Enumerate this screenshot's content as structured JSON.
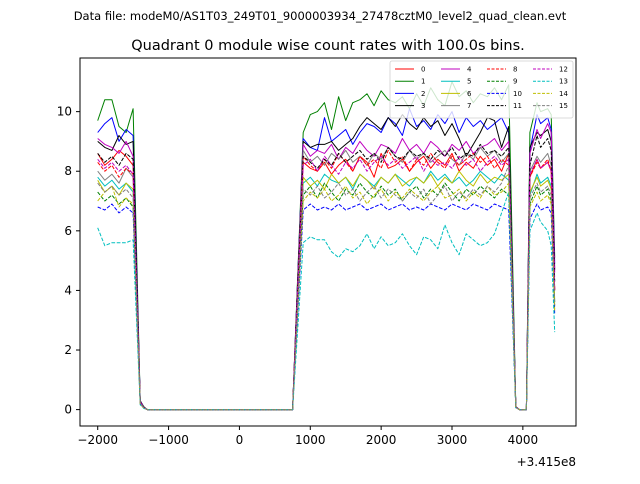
{
  "suptitle": "Data file: modeM0/AS1T03_249T01_9000003934_27478cztM0_level2_quad_clean.evt",
  "chart_data": {
    "type": "line",
    "title": "Quadrant 0 module wise count rates with 100.0s bins.",
    "xlabel": "",
    "ylabel": "",
    "x_offset_label": "+3.415e8",
    "xlim": [
      -2250,
      4750
    ],
    "ylim": [
      -0.55,
      11.8
    ],
    "xticks": [
      -2000,
      -1000,
      0,
      1000,
      2000,
      3000,
      4000
    ],
    "xtick_labels": [
      "−2000",
      "−1000",
      "0",
      "1000",
      "2000",
      "3000",
      "4000"
    ],
    "yticks": [
      0,
      2,
      4,
      6,
      8,
      10
    ],
    "ytick_labels": [
      "0",
      "2",
      "4",
      "6",
      "8",
      "10"
    ],
    "grid": false,
    "legend_position": "top-right",
    "x": [
      -2000,
      -1900,
      -1800,
      -1700,
      -1600,
      -1500,
      -1400,
      -1350,
      -1300,
      -1200,
      -1100,
      -1000,
      -900,
      -800,
      -700,
      -600,
      -500,
      -400,
      -300,
      -200,
      -100,
      0,
      100,
      200,
      300,
      400,
      500,
      600,
      700,
      750,
      900,
      1000,
      1100,
      1200,
      1300,
      1400,
      1500,
      1600,
      1700,
      1800,
      1900,
      2000,
      2100,
      2200,
      2300,
      2400,
      2500,
      2600,
      2700,
      2800,
      2900,
      3000,
      3100,
      3200,
      3300,
      3400,
      3500,
      3600,
      3700,
      3800,
      3900,
      3950,
      4050,
      4100,
      4200,
      4250,
      4350,
      4400,
      4450
    ],
    "series": [
      {
        "name": "0",
        "color": "#ff0000",
        "dash": "solid",
        "values": [
          8.6,
          8.2,
          8.4,
          8.7,
          8.5,
          8.2,
          0.25,
          0.08,
          0,
          0,
          0,
          0,
          0,
          0,
          0,
          0,
          0,
          0,
          0,
          0,
          0,
          0,
          0,
          0,
          0,
          0,
          0,
          0,
          0,
          0,
          8.3,
          8.1,
          8.0,
          8.3,
          7.9,
          8.2,
          8.4,
          8.0,
          8.5,
          8.3,
          7.8,
          8.6,
          8.1,
          8.2,
          8.4,
          8.0,
          8.3,
          8.5,
          8.1,
          8.4,
          8.2,
          8.6,
          8.0,
          8.3,
          8.1,
          8.5,
          8.2,
          8.4,
          8.0,
          8.6,
          0.1,
          0,
          0,
          7.8,
          8.4,
          8.1,
          8.3,
          8.0,
          4.0
        ]
      },
      {
        "name": "1",
        "color": "#008000",
        "dash": "solid",
        "values": [
          9.7,
          10.4,
          10.4,
          9.5,
          9.3,
          10.1,
          0.3,
          0.1,
          0,
          0,
          0,
          0,
          0,
          0,
          0,
          0,
          0,
          0,
          0,
          0,
          0,
          0,
          0,
          0,
          0,
          0,
          0,
          0,
          0,
          0,
          9.3,
          9.9,
          10.0,
          10.3,
          9.4,
          10.5,
          9.7,
          10.3,
          10.4,
          10.6,
          10.2,
          10.7,
          10.4,
          10.3,
          10.5,
          10.1,
          10.6,
          10.2,
          10.8,
          10.4,
          10.2,
          11.0,
          10.5,
          10.7,
          10.3,
          10.6,
          10.5,
          10.8,
          10.4,
          10.9,
          0.1,
          0,
          0,
          9.3,
          10.3,
          10.0,
          10.1,
          9.9,
          5.1
        ]
      },
      {
        "name": "2",
        "color": "#0000ff",
        "dash": "solid",
        "values": [
          9.3,
          9.6,
          9.8,
          9.0,
          9.4,
          9.2,
          0.3,
          0.08,
          0,
          0,
          0,
          0,
          0,
          0,
          0,
          0,
          0,
          0,
          0,
          0,
          0,
          0,
          0,
          0,
          0,
          0,
          0,
          0,
          0,
          0,
          9.1,
          8.8,
          8.7,
          9.8,
          9.0,
          9.2,
          9.4,
          8.9,
          9.3,
          9.6,
          9.5,
          9.3,
          9.8,
          9.6,
          9.2,
          10.1,
          9.5,
          9.7,
          9.4,
          9.9,
          9.6,
          10.0,
          9.3,
          9.8,
          9.5,
          9.7,
          9.4,
          9.6,
          9.8,
          9.3,
          0.1,
          0,
          0,
          8.7,
          9.9,
          9.6,
          9.8,
          9.4,
          4.9
        ]
      },
      {
        "name": "3",
        "color": "#000000",
        "dash": "solid",
        "values": [
          9.0,
          8.8,
          8.7,
          9.2,
          8.9,
          9.0,
          0.3,
          0.08,
          0,
          0,
          0,
          0,
          0,
          0,
          0,
          0,
          0,
          0,
          0,
          0,
          0,
          0,
          0,
          0,
          0,
          0,
          0,
          0,
          0,
          0,
          9.0,
          8.8,
          8.9,
          8.9,
          9.0,
          8.7,
          8.9,
          9.1,
          9.5,
          9.8,
          9.6,
          9.4,
          9.8,
          9.5,
          9.9,
          9.6,
          9.4,
          9.8,
          9.5,
          9.7,
          9.2,
          9.6,
          9.1,
          8.5,
          8.9,
          9.3,
          9.8,
          9.7,
          8.8,
          9.5,
          0.1,
          0,
          0,
          8.8,
          9.3,
          9.2,
          9.4,
          9.0,
          4.7
        ]
      },
      {
        "name": "4",
        "color": "#bf00bf",
        "dash": "solid",
        "values": [
          9.1,
          8.9,
          8.8,
          8.6,
          9.0,
          8.5,
          0.28,
          0.08,
          0,
          0,
          0,
          0,
          0,
          0,
          0,
          0,
          0,
          0,
          0,
          0,
          0,
          0,
          0,
          0,
          0,
          0,
          0,
          0,
          0,
          0,
          8.9,
          8.5,
          8.7,
          8.6,
          8.9,
          8.4,
          8.8,
          8.6,
          9.0,
          8.7,
          8.5,
          8.9,
          8.8,
          8.6,
          9.1,
          8.7,
          8.9,
          8.6,
          9.0,
          8.8,
          8.5,
          8.9,
          8.7,
          9.0,
          8.6,
          8.8,
          8.9,
          9.1,
          8.7,
          9.0,
          0.1,
          0,
          0,
          8.6,
          9.4,
          9.1,
          9.6,
          9.3,
          4.6
        ]
      },
      {
        "name": "5",
        "color": "#00bfbf",
        "dash": "solid",
        "values": [
          7.8,
          7.5,
          7.7,
          7.4,
          7.6,
          7.3,
          0.22,
          0.06,
          0,
          0,
          0,
          0,
          0,
          0,
          0,
          0,
          0,
          0,
          0,
          0,
          0,
          0,
          0,
          0,
          0,
          0,
          0,
          0,
          0,
          0,
          7.6,
          7.8,
          7.5,
          7.9,
          7.7,
          7.6,
          7.8,
          7.4,
          7.9,
          7.7,
          7.5,
          7.8,
          7.6,
          7.9,
          7.7,
          7.5,
          7.8,
          7.6,
          8.0,
          7.7,
          7.9,
          7.6,
          7.8,
          7.5,
          7.7,
          8.0,
          7.8,
          7.6,
          7.9,
          7.7,
          0.08,
          0,
          0,
          7.2,
          7.9,
          7.6,
          7.8,
          7.5,
          3.6
        ]
      },
      {
        "name": "6",
        "color": "#bfbf00",
        "dash": "solid",
        "values": [
          7.7,
          7.3,
          7.5,
          7.2,
          7.6,
          7.4,
          0.22,
          0.06,
          0,
          0,
          0,
          0,
          0,
          0,
          0,
          0,
          0,
          0,
          0,
          0,
          0,
          0,
          0,
          0,
          0,
          0,
          0,
          0,
          0,
          0,
          7.8,
          7.5,
          7.7,
          7.4,
          7.9,
          7.6,
          7.8,
          7.5,
          7.9,
          7.7,
          7.4,
          7.8,
          7.6,
          7.9,
          7.5,
          7.7,
          7.8,
          7.6,
          7.9,
          7.5,
          7.8,
          7.6,
          8.0,
          7.7,
          7.5,
          7.9,
          7.6,
          7.8,
          7.7,
          7.9,
          0.08,
          0,
          0,
          7.3,
          7.8,
          7.5,
          7.7,
          7.4,
          3.6
        ]
      },
      {
        "name": "7",
        "color": "#808080",
        "dash": "solid",
        "values": [
          8.0,
          7.7,
          7.9,
          7.6,
          8.1,
          7.8,
          0.24,
          0.06,
          0,
          0,
          0,
          0,
          0,
          0,
          0,
          0,
          0,
          0,
          0,
          0,
          0,
          0,
          0,
          0,
          0,
          0,
          0,
          0,
          0,
          0,
          8.7,
          8.3,
          8.5,
          8.2,
          8.6,
          8.4,
          8.7,
          8.3,
          8.5,
          8.2,
          8.6,
          8.4,
          8.8,
          8.5,
          8.3,
          8.7,
          8.4,
          8.6,
          8.3,
          8.5,
          8.7,
          8.4,
          8.2,
          8.6,
          8.4,
          8.8,
          8.5,
          8.7,
          8.3,
          8.6,
          0.08,
          0,
          0,
          8.0,
          8.5,
          8.3,
          8.6,
          8.2,
          4.0
        ]
      },
      {
        "name": "8",
        "color": "#ff0000",
        "dash": "dashed",
        "values": [
          8.3,
          8.0,
          8.2,
          7.8,
          8.1,
          7.9,
          0.24,
          0.06,
          0,
          0,
          0,
          0,
          0,
          0,
          0,
          0,
          0,
          0,
          0,
          0,
          0,
          0,
          0,
          0,
          0,
          0,
          0,
          0,
          0,
          0,
          8.5,
          8.2,
          8.0,
          8.4,
          8.1,
          8.6,
          8.3,
          8.0,
          8.5,
          8.2,
          8.4,
          8.1,
          8.7,
          8.3,
          8.5,
          8.0,
          8.4,
          8.2,
          8.6,
          8.3,
          8.1,
          8.5,
          8.2,
          8.4,
          8.6,
          8.3,
          8.5,
          8.1,
          8.4,
          8.2,
          0.08,
          0,
          0,
          7.8,
          8.3,
          8.1,
          8.4,
          8.0,
          4.0
        ]
      },
      {
        "name": "9",
        "color": "#008000",
        "dash": "dashed",
        "values": [
          7.3,
          7.0,
          7.2,
          6.9,
          7.1,
          6.8,
          0.22,
          0.06,
          0,
          0,
          0,
          0,
          0,
          0,
          0,
          0,
          0,
          0,
          0,
          0,
          0,
          0,
          0,
          0,
          0,
          0,
          0,
          0,
          0,
          0,
          7.2,
          7.5,
          7.1,
          7.6,
          7.3,
          7.0,
          7.4,
          7.2,
          7.6,
          7.3,
          7.1,
          7.5,
          7.2,
          7.4,
          7.0,
          7.3,
          7.5,
          7.1,
          7.4,
          7.2,
          7.6,
          7.3,
          7.0,
          7.4,
          7.2,
          7.5,
          7.3,
          7.1,
          7.4,
          7.2,
          0.08,
          0,
          0,
          6.9,
          7.5,
          7.2,
          7.4,
          7.0,
          3.4
        ]
      },
      {
        "name": "10",
        "color": "#0000ff",
        "dash": "dashed",
        "values": [
          6.8,
          6.7,
          6.9,
          6.6,
          6.8,
          6.6,
          0.2,
          0.05,
          0,
          0,
          0,
          0,
          0,
          0,
          0,
          0,
          0,
          0,
          0,
          0,
          0,
          0,
          0,
          0,
          0,
          0,
          0,
          0,
          0,
          0,
          6.7,
          6.9,
          6.7,
          6.8,
          6.7,
          6.9,
          6.7,
          6.8,
          6.9,
          6.7,
          6.8,
          6.9,
          6.7,
          6.8,
          6.9,
          6.7,
          6.8,
          6.7,
          6.9,
          6.8,
          6.7,
          6.9,
          6.8,
          6.7,
          6.9,
          6.8,
          6.7,
          6.9,
          6.8,
          6.7,
          0.07,
          0,
          0,
          6.4,
          6.9,
          6.7,
          6.8,
          6.6,
          3.2
        ]
      },
      {
        "name": "11",
        "color": "#000000",
        "dash": "dashed",
        "values": [
          8.6,
          8.3,
          8.5,
          8.2,
          8.6,
          8.4,
          0.25,
          0.07,
          0,
          0,
          0,
          0,
          0,
          0,
          0,
          0,
          0,
          0,
          0,
          0,
          0,
          0,
          0,
          0,
          0,
          0,
          0,
          0,
          0,
          0,
          8.5,
          8.3,
          8.1,
          8.4,
          8.2,
          8.6,
          8.3,
          8.5,
          8.7,
          8.4,
          8.6,
          8.3,
          8.8,
          8.5,
          8.4,
          8.7,
          8.5,
          8.6,
          8.4,
          8.7,
          8.5,
          8.8,
          8.4,
          8.6,
          8.5,
          8.9,
          8.6,
          8.7,
          8.5,
          8.8,
          0.08,
          0,
          0,
          8.2,
          9.2,
          8.8,
          9.1,
          8.7,
          4.3
        ]
      },
      {
        "name": "12",
        "color": "#bf00bf",
        "dash": "dashed",
        "values": [
          8.4,
          8.1,
          8.3,
          8.0,
          8.2,
          7.9,
          0.24,
          0.06,
          0,
          0,
          0,
          0,
          0,
          0,
          0,
          0,
          0,
          0,
          0,
          0,
          0,
          0,
          0,
          0,
          0,
          0,
          0,
          0,
          0,
          0,
          8.2,
          8.4,
          8.0,
          8.5,
          8.2,
          7.9,
          8.3,
          8.1,
          8.4,
          8.0,
          8.3,
          8.5,
          8.2,
          8.4,
          8.1,
          8.3,
          8.5,
          8.0,
          8.4,
          8.2,
          8.3,
          8.1,
          8.5,
          8.2,
          8.4,
          8.0,
          8.3,
          8.5,
          8.2,
          8.4,
          0.08,
          0,
          0,
          7.9,
          8.4,
          8.1,
          8.3,
          8.0,
          4.0
        ]
      },
      {
        "name": "13",
        "color": "#00bfbf",
        "dash": "dashed",
        "values": [
          6.1,
          5.5,
          5.6,
          5.6,
          5.6,
          5.7,
          0.16,
          0.04,
          0,
          0,
          0,
          0,
          0,
          0,
          0,
          0,
          0,
          0,
          0,
          0,
          0,
          0,
          0,
          0,
          0,
          0,
          0,
          0,
          0,
          0,
          5.6,
          5.8,
          5.7,
          5.7,
          5.3,
          5.1,
          5.4,
          5.3,
          5.5,
          5.9,
          5.4,
          5.8,
          5.5,
          5.6,
          5.9,
          5.5,
          5.2,
          5.8,
          5.7,
          5.4,
          6.2,
          5.6,
          5.2,
          5.9,
          5.7,
          5.5,
          5.6,
          5.9,
          6.6,
          7.3,
          0.06,
          0,
          0,
          6.0,
          6.6,
          6.3,
          6.0,
          5.5,
          2.6
        ]
      },
      {
        "name": "14",
        "color": "#bfbf00",
        "dash": "dashed",
        "values": [
          7.0,
          7.3,
          7.5,
          6.8,
          7.1,
          6.9,
          0.2,
          0.05,
          0,
          0,
          0,
          0,
          0,
          0,
          0,
          0,
          0,
          0,
          0,
          0,
          0,
          0,
          0,
          0,
          0,
          0,
          0,
          0,
          0,
          0,
          7.0,
          7.3,
          7.1,
          7.4,
          7.0,
          7.2,
          7.5,
          7.1,
          7.3,
          6.9,
          7.2,
          7.4,
          7.0,
          7.3,
          7.1,
          7.4,
          7.2,
          7.0,
          7.3,
          7.5,
          7.1,
          7.2,
          7.4,
          7.0,
          7.3,
          7.1,
          7.5,
          7.2,
          7.3,
          7.6,
          0.07,
          0,
          0,
          6.8,
          7.3,
          7.0,
          7.2,
          6.9,
          3.3
        ]
      },
      {
        "name": "15",
        "color": "#808080",
        "dash": "dashed",
        "values": [
          7.6,
          7.3,
          7.5,
          7.2,
          7.4,
          7.1,
          0.22,
          0.06,
          0,
          0,
          0,
          0,
          0,
          0,
          0,
          0,
          0,
          0,
          0,
          0,
          0,
          0,
          0,
          0,
          0,
          0,
          0,
          0,
          0,
          0,
          7.4,
          7.2,
          7.5,
          7.1,
          7.3,
          7.6,
          7.2,
          7.4,
          7.0,
          7.3,
          7.5,
          7.1,
          7.4,
          7.2,
          7.0,
          7.3,
          7.1,
          7.4,
          6.9,
          7.2,
          7.5,
          7.0,
          7.3,
          7.1,
          7.4,
          7.2,
          7.5,
          7.3,
          7.6,
          8.2,
          0.07,
          0,
          0,
          7.1,
          7.6,
          7.3,
          7.5,
          7.2,
          3.5
        ]
      }
    ]
  }
}
